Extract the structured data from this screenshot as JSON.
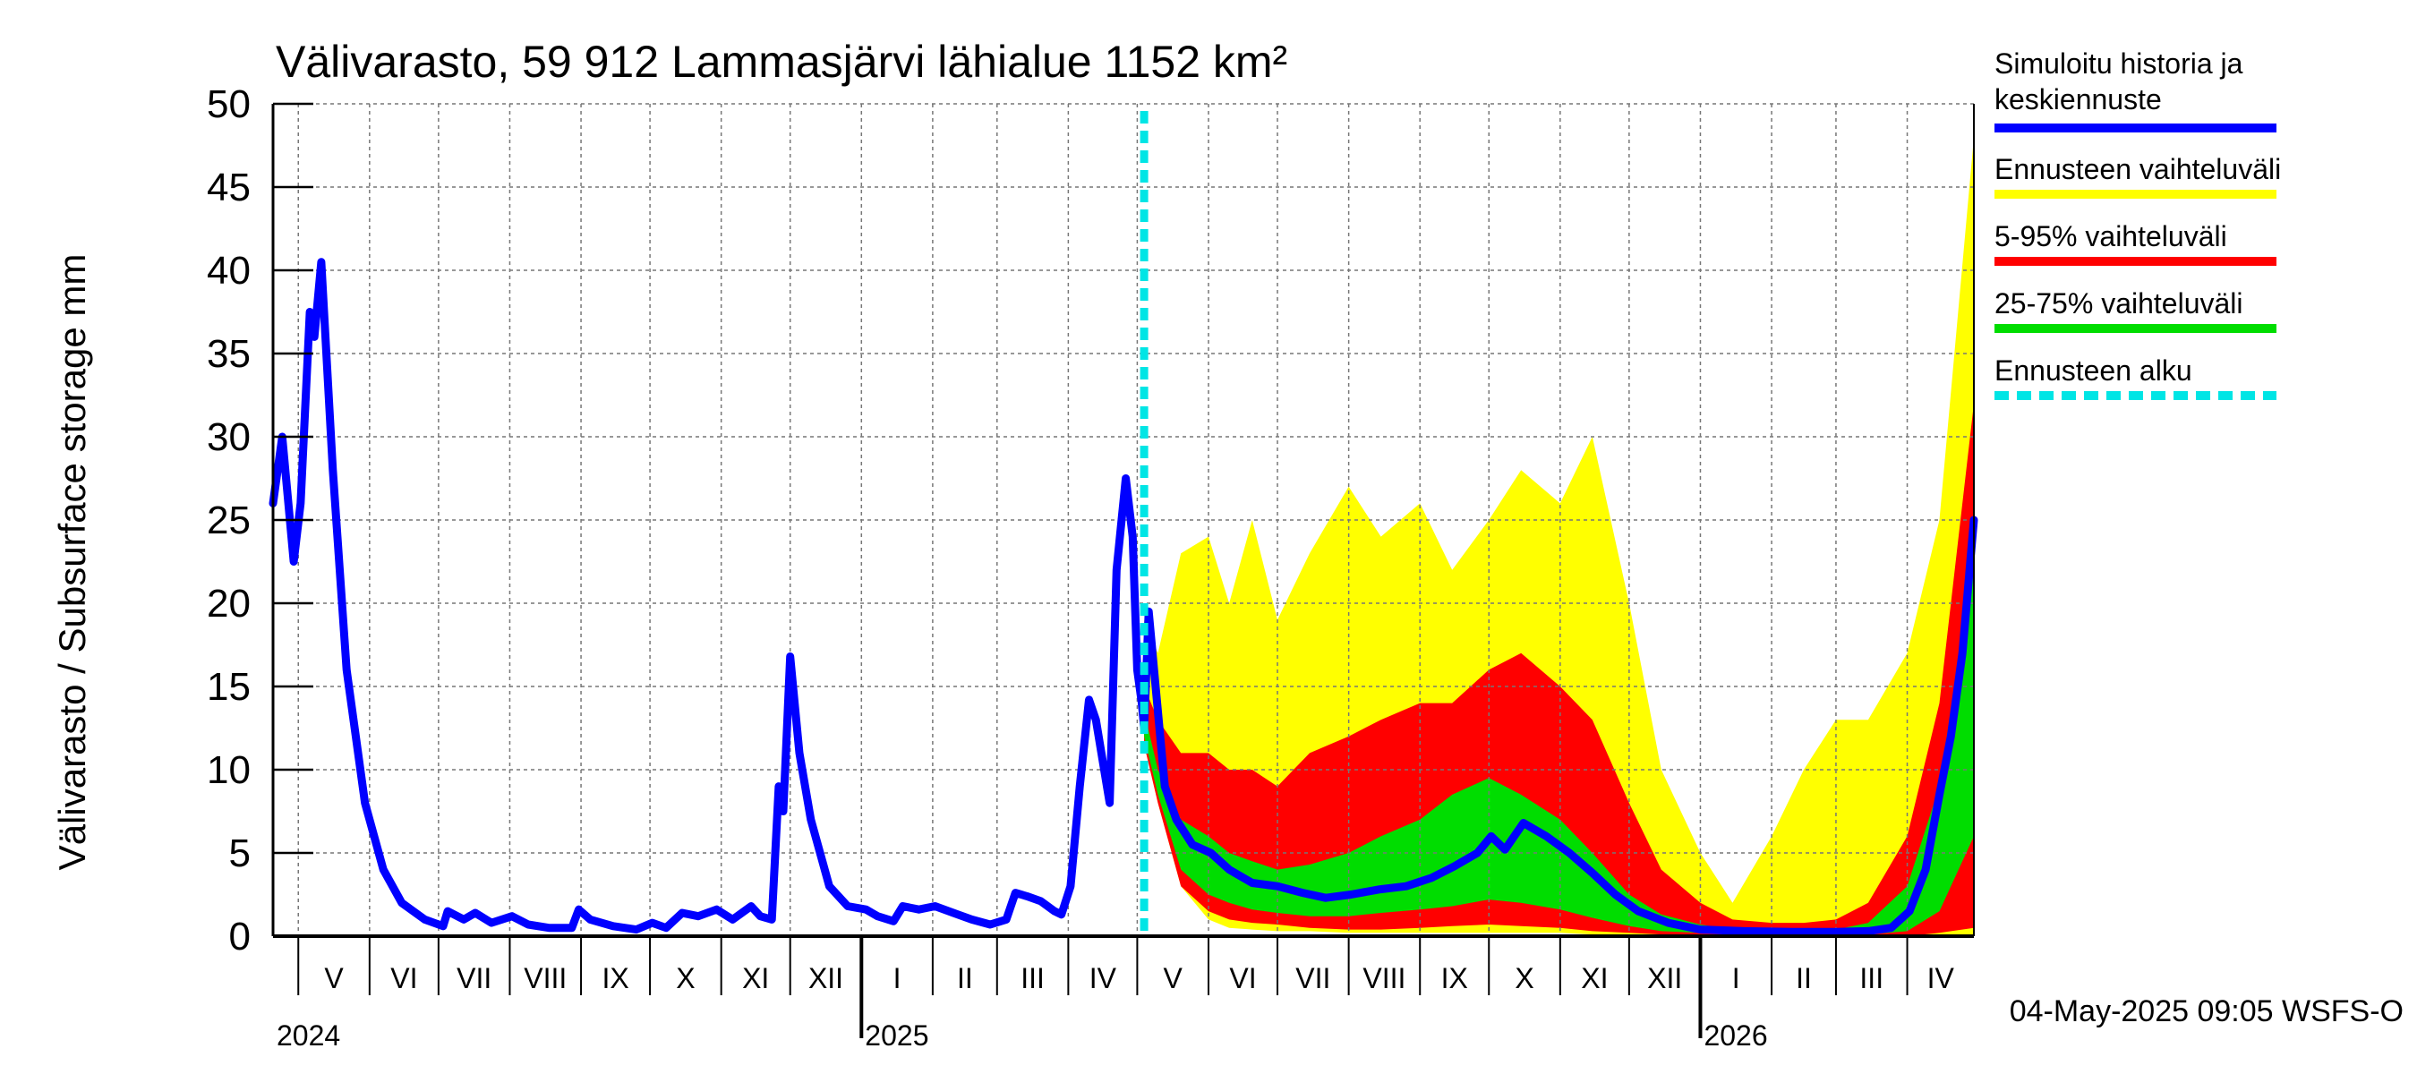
{
  "chart_data": {
    "type": "area",
    "title": "Välivarasto, 59 912 Lammasjärvi lähialue 1152 km²",
    "ylabel": "Välivarasto / Subsurface storage  mm",
    "ylim": [
      0,
      50
    ],
    "yticks": [
      "0",
      "5",
      "10",
      "15",
      "20",
      "25",
      "30",
      "35",
      "40",
      "45",
      "50"
    ],
    "grid": true,
    "xlim": [
      "2024-04-20",
      "2026-04-30"
    ],
    "month_labels": [
      {
        "label": "V",
        "start": "2024-05-01"
      },
      {
        "label": "VI",
        "start": "2024-06-01"
      },
      {
        "label": "VII",
        "start": "2024-07-01"
      },
      {
        "label": "VIII",
        "start": "2024-08-01"
      },
      {
        "label": "IX",
        "start": "2024-09-01"
      },
      {
        "label": "X",
        "start": "2024-10-01"
      },
      {
        "label": "XI",
        "start": "2024-11-01"
      },
      {
        "label": "XII",
        "start": "2024-12-01"
      },
      {
        "label": "I",
        "start": "2025-01-01"
      },
      {
        "label": "II",
        "start": "2025-02-01"
      },
      {
        "label": "III",
        "start": "2025-03-01"
      },
      {
        "label": "IV",
        "start": "2025-04-01"
      },
      {
        "label": "V",
        "start": "2025-05-01"
      },
      {
        "label": "VI",
        "start": "2025-06-01"
      },
      {
        "label": "VII",
        "start": "2025-07-01"
      },
      {
        "label": "VIII",
        "start": "2025-08-01"
      },
      {
        "label": "IX",
        "start": "2025-09-01"
      },
      {
        "label": "X",
        "start": "2025-10-01"
      },
      {
        "label": "XI",
        "start": "2025-11-01"
      },
      {
        "label": "XII",
        "start": "2025-12-01"
      },
      {
        "label": "I",
        "start": "2026-01-01"
      },
      {
        "label": "II",
        "start": "2026-02-01"
      },
      {
        "label": "III",
        "start": "2026-03-01"
      },
      {
        "label": "IV",
        "start": "2026-04-01"
      }
    ],
    "year_labels": [
      {
        "label": "2024",
        "date": "2024-04-20"
      },
      {
        "label": "2025",
        "date": "2025-01-01"
      },
      {
        "label": "2026",
        "date": "2026-01-01"
      }
    ],
    "forecast_start": "2025-05-04",
    "legend": {
      "position": "right",
      "entries": [
        {
          "label_lines": [
            "Simuloitu historia ja",
            "keskiennuste"
          ],
          "color": "#0000ff",
          "style": "solid"
        },
        {
          "label_lines": [
            "Ennusteen vaihteluväli"
          ],
          "color": "#ffff00",
          "style": "solid"
        },
        {
          "label_lines": [
            "5-95% vaihteluväli"
          ],
          "color": "#ff0000",
          "style": "solid"
        },
        {
          "label_lines": [
            "25-75% vaihteluväli"
          ],
          "color": "#00dd00",
          "style": "solid"
        },
        {
          "label_lines": [
            "Ennusteen alku"
          ],
          "color": "#00e5e5",
          "style": "dashed"
        }
      ]
    },
    "series": [
      {
        "name": "Simuloitu historia ja keskiennuste",
        "color": "#0000ff",
        "points": [
          [
            "2024-04-20",
            26
          ],
          [
            "2024-04-24",
            30
          ],
          [
            "2024-04-29",
            22.5
          ],
          [
            "2024-05-02",
            26
          ],
          [
            "2024-05-06",
            37.5
          ],
          [
            "2024-05-08",
            36
          ],
          [
            "2024-05-11",
            40.5
          ],
          [
            "2024-05-16",
            28
          ],
          [
            "2024-05-22",
            16
          ],
          [
            "2024-05-30",
            8
          ],
          [
            "2024-06-07",
            4
          ],
          [
            "2024-06-15",
            2
          ],
          [
            "2024-06-25",
            1
          ],
          [
            "2024-07-03",
            0.6
          ],
          [
            "2024-07-05",
            1.5
          ],
          [
            "2024-07-12",
            1
          ],
          [
            "2024-07-17",
            1.4
          ],
          [
            "2024-07-24",
            0.8
          ],
          [
            "2024-08-02",
            1.2
          ],
          [
            "2024-08-09",
            0.7
          ],
          [
            "2024-08-18",
            0.5
          ],
          [
            "2024-08-28",
            0.5
          ],
          [
            "2024-08-31",
            1.6
          ],
          [
            "2024-09-05",
            1
          ],
          [
            "2024-09-15",
            0.6
          ],
          [
            "2024-09-25",
            0.4
          ],
          [
            "2024-10-02",
            0.8
          ],
          [
            "2024-10-08",
            0.5
          ],
          [
            "2024-10-15",
            1.4
          ],
          [
            "2024-10-22",
            1.2
          ],
          [
            "2024-10-30",
            1.6
          ],
          [
            "2024-11-06",
            1
          ],
          [
            "2024-11-14",
            1.8
          ],
          [
            "2024-11-18",
            1.2
          ],
          [
            "2024-11-23",
            1
          ],
          [
            "2024-11-26",
            9
          ],
          [
            "2024-11-28",
            7.5
          ],
          [
            "2024-12-01",
            16.8
          ],
          [
            "2024-12-05",
            11
          ],
          [
            "2024-12-10",
            7
          ],
          [
            "2024-12-18",
            3
          ],
          [
            "2024-12-26",
            1.8
          ],
          [
            "2025-01-03",
            1.6
          ],
          [
            "2025-01-08",
            1.2
          ],
          [
            "2025-01-15",
            0.9
          ],
          [
            "2025-01-19",
            1.8
          ],
          [
            "2025-01-26",
            1.6
          ],
          [
            "2025-02-02",
            1.8
          ],
          [
            "2025-02-10",
            1.4
          ],
          [
            "2025-02-18",
            1
          ],
          [
            "2025-02-26",
            0.7
          ],
          [
            "2025-03-05",
            1
          ],
          [
            "2025-03-09",
            2.6
          ],
          [
            "2025-03-14",
            2.4
          ],
          [
            "2025-03-20",
            2.1
          ],
          [
            "2025-03-26",
            1.5
          ],
          [
            "2025-03-29",
            1.3
          ],
          [
            "2025-04-02",
            3
          ],
          [
            "2025-04-06",
            9
          ],
          [
            "2025-04-10",
            14.2
          ],
          [
            "2025-04-13",
            13
          ],
          [
            "2025-04-19",
            8
          ],
          [
            "2025-04-22",
            22
          ],
          [
            "2025-04-26",
            27.5
          ],
          [
            "2025-04-29",
            24
          ],
          [
            "2025-05-01",
            16
          ],
          [
            "2025-05-03",
            14
          ],
          [
            "2025-05-04",
            12.5
          ],
          [
            "2025-05-06",
            19.5
          ],
          [
            "2025-05-09",
            15
          ],
          [
            "2025-05-13",
            9
          ],
          [
            "2025-05-18",
            7
          ],
          [
            "2025-05-25",
            5.5
          ],
          [
            "2025-06-02",
            5
          ],
          [
            "2025-06-10",
            4
          ],
          [
            "2025-06-20",
            3.2
          ],
          [
            "2025-07-01",
            3
          ],
          [
            "2025-07-12",
            2.6
          ],
          [
            "2025-07-22",
            2.3
          ],
          [
            "2025-08-02",
            2.5
          ],
          [
            "2025-08-14",
            2.8
          ],
          [
            "2025-08-26",
            3
          ],
          [
            "2025-09-06",
            3.5
          ],
          [
            "2025-09-16",
            4.2
          ],
          [
            "2025-09-26",
            5
          ],
          [
            "2025-10-02",
            6
          ],
          [
            "2025-10-08",
            5.2
          ],
          [
            "2025-10-16",
            6.8
          ],
          [
            "2025-10-26",
            6
          ],
          [
            "2025-11-05",
            5
          ],
          [
            "2025-11-15",
            3.8
          ],
          [
            "2025-11-25",
            2.5
          ],
          [
            "2025-12-05",
            1.5
          ],
          [
            "2025-12-18",
            0.8
          ],
          [
            "2026-01-01",
            0.4
          ],
          [
            "2026-01-20",
            0.3
          ],
          [
            "2026-02-10",
            0.25
          ],
          [
            "2026-03-01",
            0.25
          ],
          [
            "2026-03-15",
            0.3
          ],
          [
            "2026-03-25",
            0.5
          ],
          [
            "2026-04-02",
            1.5
          ],
          [
            "2026-04-09",
            4
          ],
          [
            "2026-04-15",
            8.5
          ],
          [
            "2026-04-20",
            12
          ],
          [
            "2026-04-25",
            17
          ],
          [
            "2026-04-30",
            25
          ]
        ]
      }
    ],
    "bands": [
      {
        "name": "Ennusteen vaihteluväli",
        "color": "#ffff00",
        "x": [
          "2025-05-04",
          "2025-05-10",
          "2025-05-20",
          "2025-06-01",
          "2025-06-10",
          "2025-06-20",
          "2025-07-01",
          "2025-07-15",
          "2025-08-01",
          "2025-08-15",
          "2025-09-01",
          "2025-09-15",
          "2025-10-01",
          "2025-10-15",
          "2025-11-01",
          "2025-11-15",
          "2025-12-01",
          "2025-12-15",
          "2026-01-01",
          "2026-01-15",
          "2026-02-01",
          "2026-02-15",
          "2026-03-01",
          "2026-03-15",
          "2026-04-01",
          "2026-04-15",
          "2026-04-30"
        ],
        "lower": [
          11.5,
          8,
          3,
          1,
          0.5,
          0.4,
          0.3,
          0.3,
          0.2,
          0.2,
          0.2,
          0.2,
          0.2,
          0.2,
          0.2,
          0.1,
          0.1,
          0.1,
          0,
          0,
          0,
          0,
          0,
          0,
          0,
          0,
          0
        ],
        "upper": [
          19,
          17,
          23,
          24,
          20,
          25,
          19,
          23,
          27,
          24,
          26,
          22,
          25,
          28,
          26,
          30,
          20,
          10,
          5,
          2,
          6,
          10,
          13,
          13,
          17,
          25,
          48
        ]
      },
      {
        "name": "5-95% vaihteluväli",
        "color": "#ff0000",
        "x": [
          "2025-05-04",
          "2025-05-10",
          "2025-05-20",
          "2025-06-01",
          "2025-06-10",
          "2025-06-20",
          "2025-07-01",
          "2025-07-15",
          "2025-08-01",
          "2025-08-15",
          "2025-09-01",
          "2025-09-15",
          "2025-10-01",
          "2025-10-15",
          "2025-11-01",
          "2025-11-15",
          "2025-12-01",
          "2025-12-15",
          "2026-01-01",
          "2026-01-15",
          "2026-02-01",
          "2026-02-15",
          "2026-03-01",
          "2026-03-15",
          "2026-04-01",
          "2026-04-15",
          "2026-04-30"
        ],
        "lower": [
          11.5,
          8,
          3,
          1.5,
          1,
          0.8,
          0.7,
          0.5,
          0.4,
          0.4,
          0.5,
          0.6,
          0.7,
          0.6,
          0.5,
          0.3,
          0.2,
          0.1,
          0.1,
          0,
          0,
          0,
          0,
          0,
          0,
          0.2,
          0.5
        ],
        "upper": [
          15,
          13,
          11,
          11,
          10,
          10,
          9,
          11,
          12,
          13,
          14,
          14,
          16,
          17,
          15,
          13,
          8,
          4,
          2,
          1,
          0.8,
          0.8,
          1,
          2,
          6,
          14,
          32
        ]
      },
      {
        "name": "25-75% vaihteluväli",
        "color": "#00dd00",
        "x": [
          "2025-05-04",
          "2025-05-10",
          "2025-05-20",
          "2025-06-01",
          "2025-06-10",
          "2025-06-20",
          "2025-07-01",
          "2025-07-15",
          "2025-08-01",
          "2025-08-15",
          "2025-09-01",
          "2025-09-15",
          "2025-10-01",
          "2025-10-15",
          "2025-11-01",
          "2025-11-15",
          "2025-12-01",
          "2025-12-15",
          "2026-01-01",
          "2026-01-15",
          "2026-02-01",
          "2026-02-15",
          "2026-03-01",
          "2026-03-15",
          "2026-04-01",
          "2026-04-15",
          "2026-04-30"
        ],
        "lower": [
          12,
          8.5,
          4,
          2.5,
          2,
          1.6,
          1.4,
          1.2,
          1.2,
          1.4,
          1.6,
          1.8,
          2.2,
          2,
          1.6,
          1.1,
          0.6,
          0.3,
          0.2,
          0.1,
          0.1,
          0.1,
          0.1,
          0.1,
          0.3,
          1.5,
          6
        ],
        "upper": [
          13.5,
          10,
          7,
          6,
          5,
          4.5,
          4,
          4.3,
          5,
          6,
          7,
          8.5,
          9.5,
          8.5,
          7,
          5,
          2.5,
          1.3,
          0.7,
          0.4,
          0.3,
          0.3,
          0.4,
          0.8,
          3,
          9,
          23
        ]
      }
    ],
    "footer_text": "04-May-2025 09:05 WSFS-O"
  }
}
